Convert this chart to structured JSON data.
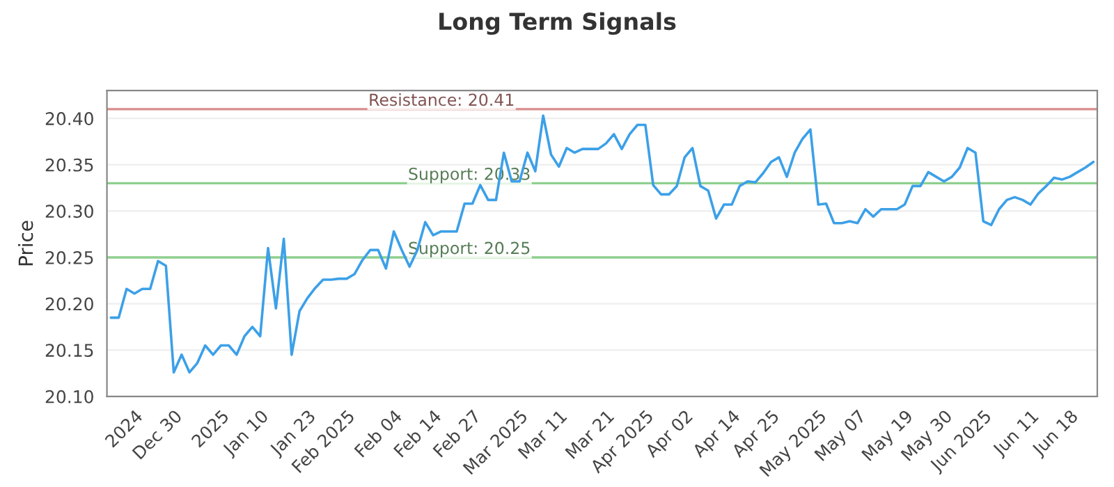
{
  "chart_data": {
    "type": "line",
    "title": "Long Term Signals",
    "ylabel": "Price",
    "categories": [
      null,
      null,
      null,
      "2024",
      null,
      null,
      null,
      null,
      "Dec 30",
      null,
      null,
      null,
      null,
      null,
      "2025",
      null,
      null,
      null,
      null,
      "Jan 10",
      null,
      null,
      null,
      null,
      null,
      "Jan 23",
      null,
      null,
      null,
      null,
      "Feb 2025",
      null,
      null,
      null,
      null,
      null,
      "Feb 04",
      null,
      null,
      null,
      null,
      "Feb 14",
      null,
      null,
      null,
      null,
      "Feb 27",
      null,
      null,
      null,
      null,
      null,
      "Mar 2025",
      null,
      null,
      null,
      null,
      "Mar 11",
      null,
      null,
      null,
      null,
      null,
      "Mar 21",
      null,
      null,
      null,
      null,
      "Apr 2025",
      null,
      null,
      null,
      null,
      "Apr 02",
      null,
      null,
      null,
      null,
      null,
      "Apr 14",
      null,
      null,
      null,
      null,
      "Apr 25",
      null,
      null,
      null,
      null,
      null,
      "May 2025",
      null,
      null,
      null,
      null,
      "May 07",
      null,
      null,
      null,
      null,
      null,
      "May 19",
      null,
      null,
      null,
      null,
      "May 30",
      null,
      null,
      null,
      null,
      "Jun 2025",
      null,
      null,
      null,
      null,
      null,
      "Jun 11",
      null,
      null,
      null,
      null,
      "Jun 18",
      null,
      null,
      null
    ],
    "series": [
      {
        "color": "#3ca0e8",
        "values": [
          20.185,
          20.185,
          20.216,
          20.211,
          20.216,
          20.216,
          20.246,
          20.241,
          20.126,
          20.145,
          20.126,
          20.136,
          20.155,
          20.145,
          20.155,
          20.155,
          20.145,
          20.165,
          20.175,
          20.165,
          20.26,
          20.195,
          20.27,
          20.145,
          20.192,
          20.206,
          20.217,
          20.226,
          20.226,
          20.227,
          20.227,
          20.232,
          20.247,
          20.258,
          20.258,
          20.238,
          20.278,
          20.258,
          20.24,
          20.258,
          20.288,
          20.274,
          20.278,
          20.278,
          20.278,
          20.308,
          20.308,
          20.328,
          20.312,
          20.312,
          20.363,
          20.332,
          20.332,
          20.363,
          20.343,
          20.403,
          20.361,
          20.348,
          20.368,
          20.363,
          20.367,
          20.367,
          20.367,
          20.373,
          20.383,
          20.367,
          20.383,
          20.393,
          20.393,
          20.328,
          20.318,
          20.318,
          20.327,
          20.358,
          20.368,
          20.327,
          20.322,
          20.292,
          20.307,
          20.307,
          20.327,
          20.332,
          20.331,
          20.341,
          20.353,
          20.358,
          20.337,
          20.363,
          20.378,
          20.388,
          20.307,
          20.308,
          20.287,
          20.287,
          20.289,
          20.287,
          20.302,
          20.294,
          20.302,
          20.302,
          20.302,
          20.307,
          20.327,
          20.327,
          20.342,
          20.337,
          20.332,
          20.337,
          20.347,
          20.368,
          20.363,
          20.289,
          20.285,
          20.302,
          20.312,
          20.315,
          20.312,
          20.307,
          20.319,
          20.327,
          20.336,
          20.334,
          20.337,
          20.342,
          20.347,
          20.353
        ]
      }
    ],
    "ylim": [
      20.1,
      20.43
    ],
    "yticks": [
      {
        "value": 20.1,
        "label": "20.10"
      },
      {
        "value": 20.15,
        "label": "20.15"
      },
      {
        "value": 20.2,
        "label": "20.20"
      },
      {
        "value": 20.25,
        "label": "20.25"
      },
      {
        "value": 20.3,
        "label": "20.30"
      },
      {
        "value": 20.35,
        "label": "20.35"
      },
      {
        "value": 20.4,
        "label": "20.40"
      }
    ],
    "grid": "y",
    "ref_lines": [
      {
        "axis": "y",
        "value": 20.41,
        "label": "Resistance: 20.41",
        "color": "#d98c8c"
      },
      {
        "axis": "y",
        "value": 20.33,
        "label": "Support: 20.33",
        "color": "#8fcf8f"
      },
      {
        "axis": "y",
        "value": 20.25,
        "label": "Support: 20.25",
        "color": "#8fcf8f"
      }
    ]
  }
}
